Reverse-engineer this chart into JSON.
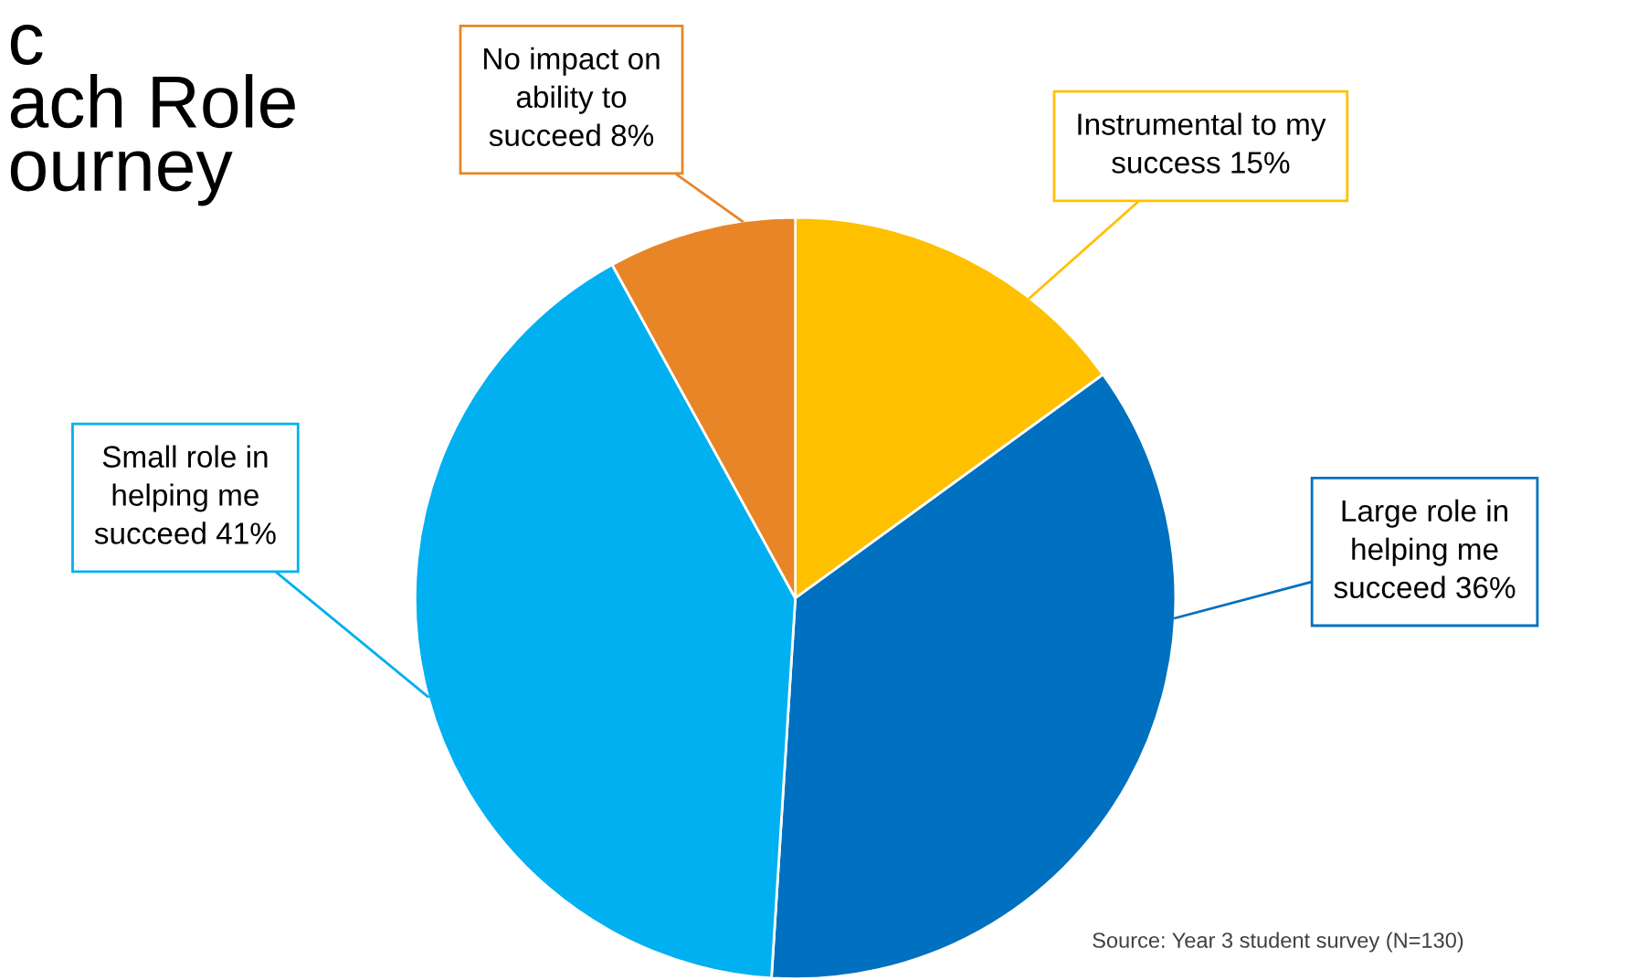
{
  "chart_data": {
    "type": "pie",
    "title": "c\nach Role\nourney",
    "categories": [
      "Instrumental to my\nsuccess",
      "Large role in\nhelping me\nsucceed",
      "Small role in\nhelping me\nsucceed",
      "No impact on\nability to\nsucceed"
    ],
    "value_labels": [
      "15%",
      "36%",
      "41%",
      "8%"
    ],
    "values": [
      15,
      36,
      41,
      8
    ],
    "colors": [
      "#ffc000",
      "#0070c0",
      "#00b0f0",
      "#e88526"
    ],
    "annotations": [
      "Source: Year 3 student survey (N=130)"
    ],
    "legend": false
  }
}
